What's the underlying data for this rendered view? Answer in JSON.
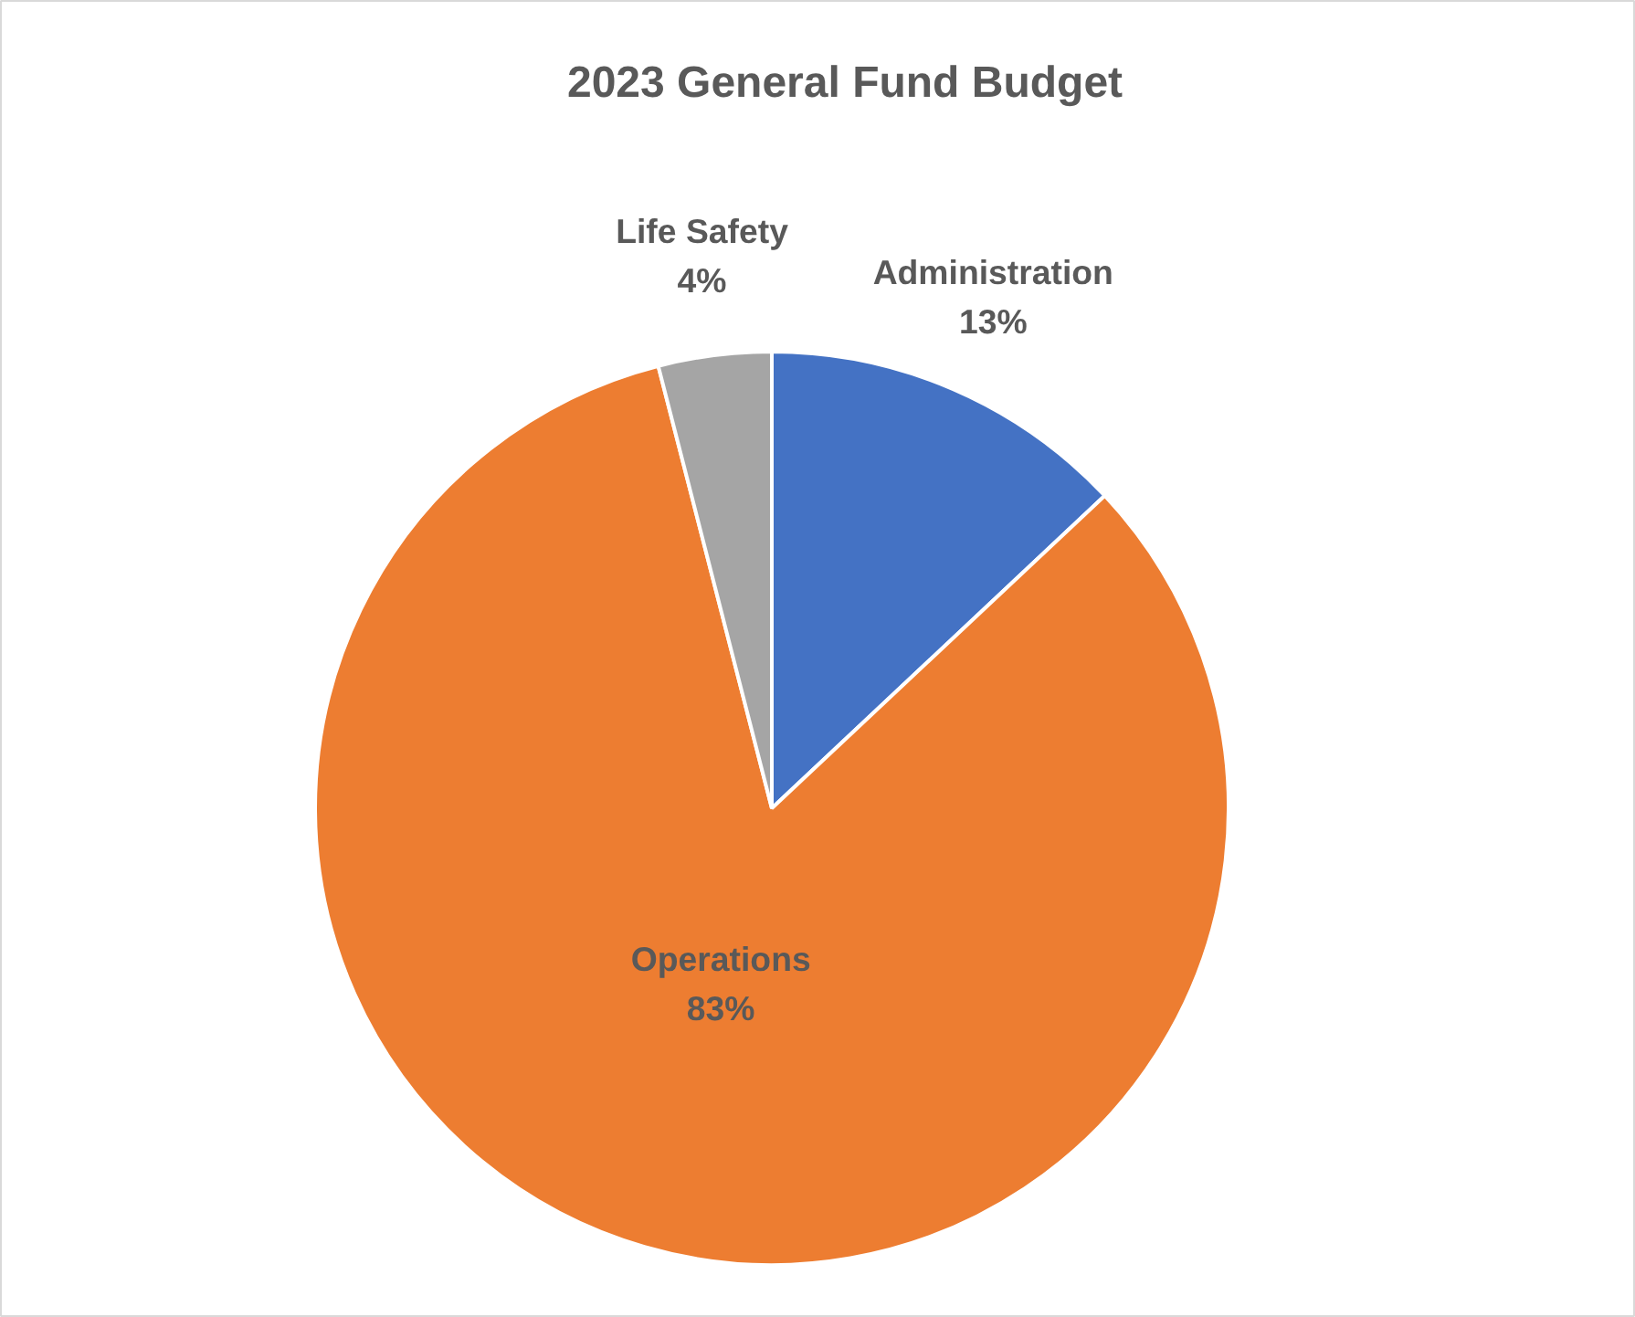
{
  "chart_data": {
    "type": "pie",
    "title": "2023 General Fund Budget",
    "categories": [
      "Administration",
      "Operations",
      "Life Safety"
    ],
    "values": [
      13,
      83,
      4
    ],
    "value_labels": [
      "13%",
      "83%",
      "4%"
    ],
    "colors": [
      "#4472c4",
      "#ed7d31",
      "#a5a5a5"
    ]
  }
}
